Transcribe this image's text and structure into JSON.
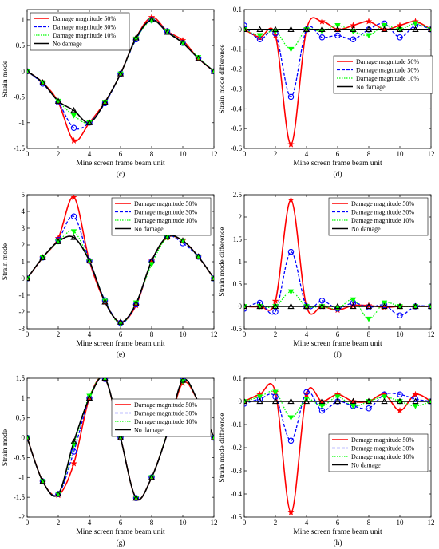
{
  "figure": {
    "series_styles": [
      {
        "name": "Damage magnitude 50%",
        "color": "#ff0000",
        "dash": "",
        "marker": "star",
        "width": 1.6
      },
      {
        "name": "Damage magnitude 30%",
        "color": "#0000ff",
        "dash": "4,2",
        "marker": "circle",
        "width": 1.3
      },
      {
        "name": "Damage magnitude 10%",
        "color": "#00ff00",
        "dash": "1.5,1.5",
        "marker": "triangle-down",
        "width": 1.3
      },
      {
        "name": "No damage",
        "color": "#000000",
        "dash": "",
        "marker": "triangle-up",
        "width": 1.6
      }
    ]
  },
  "chart_data": [
    {
      "panel_label": "(c)",
      "type": "line",
      "xlabel": "Mine screen frame beam unit",
      "ylabel": "Strain mode",
      "xlim": [
        0,
        12
      ],
      "ylim": [
        -1.5,
        1.2
      ],
      "xticks": [
        0,
        2,
        4,
        6,
        8,
        10,
        12
      ],
      "yticks": [
        -1.5,
        -1,
        -0.5,
        0,
        0.5,
        1
      ],
      "legend": "top-left",
      "x": [
        0,
        1,
        2,
        3,
        4,
        5,
        6,
        7,
        8,
        9,
        10,
        11,
        12
      ],
      "series": [
        {
          "name": "Damage magnitude 50%",
          "values": [
            0,
            -0.22,
            -0.6,
            -1.35,
            -1.0,
            -0.6,
            -0.05,
            0.65,
            1.05,
            0.78,
            0.6,
            0.25,
            0
          ]
        },
        {
          "name": "Damage magnitude 30%",
          "values": [
            0,
            -0.24,
            -0.6,
            -1.1,
            -1.0,
            -0.62,
            -0.05,
            0.62,
            1.0,
            0.78,
            0.55,
            0.25,
            0
          ]
        },
        {
          "name": "Damage magnitude 10%",
          "values": [
            0,
            -0.22,
            -0.58,
            -0.86,
            -1.0,
            -0.6,
            -0.05,
            0.63,
            0.98,
            0.78,
            0.55,
            0.27,
            0
          ]
        },
        {
          "name": "No damage",
          "values": [
            0,
            -0.22,
            -0.58,
            -0.76,
            -1.0,
            -0.6,
            -0.05,
            0.65,
            1.0,
            0.76,
            0.55,
            0.25,
            0
          ]
        }
      ]
    },
    {
      "panel_label": "(d)",
      "type": "line",
      "xlabel": "Mine screen frame beam unit",
      "ylabel": "Strain mode difference",
      "xlim": [
        0,
        12
      ],
      "ylim": [
        -0.6,
        0.1
      ],
      "xticks": [
        0,
        2,
        4,
        6,
        8,
        10,
        12
      ],
      "yticks": [
        -0.6,
        -0.5,
        -0.4,
        -0.3,
        -0.2,
        -0.1,
        0,
        0.1
      ],
      "legend": "right",
      "x": [
        0,
        1,
        2,
        3,
        4,
        5,
        6,
        7,
        8,
        9,
        10,
        11,
        12
      ],
      "series": [
        {
          "name": "Damage magnitude 50%",
          "values": [
            0,
            -0.04,
            -0.03,
            -0.58,
            0.0,
            0.04,
            0.0,
            0.02,
            0.04,
            0.0,
            0.02,
            0.04,
            0
          ]
        },
        {
          "name": "Damage magnitude 30%",
          "values": [
            0.02,
            -0.05,
            -0.02,
            -0.34,
            0.0,
            -0.04,
            -0.03,
            -0.05,
            0.0,
            0.03,
            -0.04,
            0.02,
            0
          ]
        },
        {
          "name": "Damage magnitude 10%",
          "values": [
            0,
            -0.03,
            -0.01,
            -0.1,
            0.0,
            -0.01,
            0.02,
            -0.01,
            -0.03,
            0.02,
            0.0,
            0.03,
            0
          ]
        },
        {
          "name": "No damage",
          "values": [
            0,
            0,
            0,
            0,
            0,
            0,
            0,
            0,
            0,
            0,
            0,
            0,
            0
          ]
        }
      ]
    },
    {
      "panel_label": "(e)",
      "type": "line",
      "xlabel": "Mine screen frame beam unit",
      "ylabel": "Strain mode",
      "xlim": [
        0,
        12
      ],
      "ylim": [
        -3,
        5
      ],
      "xticks": [
        0,
        2,
        4,
        6,
        8,
        10,
        12
      ],
      "yticks": [
        -3,
        -2,
        -1,
        0,
        1,
        2,
        3,
        4,
        5
      ],
      "legend": "top-right",
      "x": [
        0,
        1,
        2,
        3,
        4,
        5,
        6,
        7,
        8,
        9,
        10,
        11,
        12
      ],
      "series": [
        {
          "name": "Damage magnitude 50%",
          "values": [
            0,
            1.25,
            2.4,
            4.85,
            1.05,
            -1.4,
            -2.6,
            -1.6,
            1.05,
            2.45,
            2.25,
            1.3,
            0
          ]
        },
        {
          "name": "Damage magnitude 30%",
          "values": [
            0,
            1.25,
            2.3,
            3.7,
            1.05,
            -1.3,
            -2.65,
            -1.55,
            1.0,
            2.5,
            2.1,
            1.3,
            0
          ]
        },
        {
          "name": "Damage magnitude 10%",
          "values": [
            0,
            1.25,
            2.2,
            2.8,
            1.05,
            -1.35,
            -2.7,
            -1.45,
            0.85,
            2.45,
            2.25,
            1.3,
            0
          ]
        },
        {
          "name": "No damage",
          "values": [
            0,
            1.25,
            2.2,
            2.45,
            1.05,
            -1.4,
            -2.6,
            -1.5,
            1.05,
            2.5,
            2.25,
            1.3,
            0
          ]
        }
      ]
    },
    {
      "panel_label": "(f)",
      "type": "line",
      "xlabel": "Mine screen frame beam unit",
      "ylabel": "Strain mode difference",
      "xlim": [
        0,
        12
      ],
      "ylim": [
        -0.5,
        2.5
      ],
      "xticks": [
        0,
        2,
        4,
        6,
        8,
        10,
        12
      ],
      "yticks": [
        -0.5,
        0,
        0.5,
        1,
        1.5,
        2,
        2.5
      ],
      "legend": "top-right",
      "x": [
        0,
        1,
        2,
        3,
        4,
        5,
        6,
        7,
        8,
        9,
        10,
        11,
        12
      ],
      "series": [
        {
          "name": "Damage magnitude 50%",
          "values": [
            0,
            0.0,
            0.12,
            2.38,
            0.0,
            0.0,
            -0.08,
            0.02,
            0.02,
            -0.02,
            0.0,
            0.0,
            0
          ]
        },
        {
          "name": "Damage magnitude 30%",
          "values": [
            -0.05,
            0.08,
            -0.12,
            1.22,
            0.0,
            0.13,
            -0.05,
            0.08,
            -0.02,
            0.03,
            -0.2,
            0.0,
            0
          ]
        },
        {
          "name": "Damage magnitude 10%",
          "values": [
            0,
            0.0,
            0.0,
            0.33,
            0.0,
            0.0,
            -0.05,
            0.15,
            -0.28,
            0.08,
            0.0,
            0.0,
            0
          ]
        },
        {
          "name": "No damage",
          "values": [
            0,
            0,
            0,
            0,
            0,
            0,
            0,
            0,
            0,
            0,
            0,
            0,
            0
          ]
        }
      ]
    },
    {
      "panel_label": "(g)",
      "type": "line",
      "xlabel": "Mine screen frame beam unit",
      "ylabel": "Strain mode",
      "xlim": [
        0,
        12
      ],
      "ylim": [
        -2,
        1.5
      ],
      "xticks": [
        0,
        2,
        4,
        6,
        8,
        10,
        12
      ],
      "yticks": [
        -2,
        -1.5,
        -1,
        -0.5,
        0,
        0.5,
        1,
        1.5
      ],
      "legend": "top-right",
      "x": [
        0,
        1,
        2,
        3,
        4,
        5,
        6,
        7,
        8,
        9,
        10,
        11,
        12
      ],
      "series": [
        {
          "name": "Damage magnitude 50%",
          "values": [
            0,
            -1.1,
            -1.45,
            -0.65,
            1.0,
            1.48,
            0,
            -1.52,
            -1.0,
            0.1,
            1.38,
            0.9,
            0
          ]
        },
        {
          "name": "Damage magnitude 30%",
          "values": [
            0,
            -1.1,
            -1.42,
            -0.35,
            1.0,
            1.48,
            0,
            -1.52,
            -1.0,
            0.1,
            1.45,
            0.9,
            0
          ]
        },
        {
          "name": "Damage magnitude 10%",
          "values": [
            0,
            -1.1,
            -1.42,
            -0.18,
            1.05,
            1.48,
            0,
            -1.52,
            -1.0,
            0.12,
            1.42,
            0.9,
            0
          ]
        },
        {
          "name": "No damage",
          "values": [
            0,
            -1.1,
            -1.42,
            -0.1,
            1.0,
            1.5,
            0,
            -1.52,
            -1.0,
            0.1,
            1.45,
            0.9,
            0
          ]
        }
      ]
    },
    {
      "panel_label": "(h)",
      "type": "line",
      "xlabel": "Mine screen frame beam unit",
      "ylabel": "Strain mode difference",
      "xlim": [
        0,
        12
      ],
      "ylim": [
        -0.5,
        0.1
      ],
      "xticks": [
        0,
        2,
        4,
        6,
        8,
        10,
        12
      ],
      "yticks": [
        -0.5,
        -0.4,
        -0.3,
        -0.2,
        -0.1,
        0,
        0.1
      ],
      "legend": "right",
      "x": [
        0,
        1,
        2,
        3,
        4,
        5,
        6,
        7,
        8,
        9,
        10,
        11,
        12
      ],
      "series": [
        {
          "name": "Damage magnitude 50%",
          "values": [
            0,
            0.03,
            0.04,
            -0.48,
            0.03,
            0.0,
            0.03,
            0.0,
            0.0,
            0.03,
            -0.04,
            0.03,
            0
          ]
        },
        {
          "name": "Damage magnitude 30%",
          "values": [
            -0.01,
            0.01,
            0.02,
            -0.17,
            0.04,
            -0.04,
            0.0,
            -0.02,
            -0.03,
            0.03,
            0.03,
            0.01,
            0
          ]
        },
        {
          "name": "Damage magnitude 10%",
          "values": [
            0,
            0.02,
            0.04,
            -0.07,
            0.01,
            -0.02,
            0.02,
            -0.02,
            0.0,
            0.02,
            0.0,
            -0.02,
            0
          ]
        },
        {
          "name": "No damage",
          "values": [
            0,
            0,
            0,
            0,
            0,
            0,
            0,
            0,
            0,
            0,
            0,
            0,
            0
          ]
        }
      ]
    }
  ]
}
